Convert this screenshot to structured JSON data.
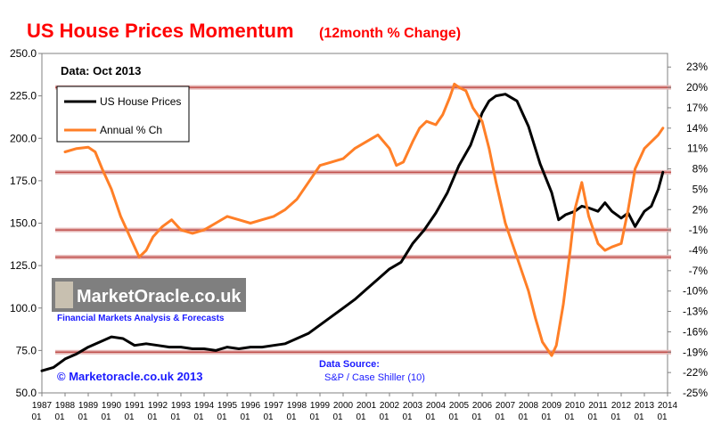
{
  "chart_data": {
    "type": "line",
    "title": "US House Prices Momentum",
    "subtitle": "(12month % Change)",
    "data_note": "Data:  Oct 2013",
    "source_label": "Data Source:",
    "source_value": "S&P / Case Shiller (10)",
    "copyright": "© Marketoracle.co.uk 2013",
    "logo": {
      "name": "MarketOracle.co.uk",
      "tagline": "Financial Markets Analysis & Forecasts"
    },
    "legend_position": "top-left",
    "grid": false,
    "colors": {
      "title": "#ff0000",
      "house_prices": "#000000",
      "annual_change": "#ff7f27",
      "reference_lines": "#c0504d"
    },
    "x_tick_labels": [
      {
        "year": "1987",
        "month": "01"
      },
      {
        "year": "1988",
        "month": "01"
      },
      {
        "year": "1989",
        "month": "01"
      },
      {
        "year": "1990",
        "month": "01"
      },
      {
        "year": "1991",
        "month": "01"
      },
      {
        "year": "1992",
        "month": "01"
      },
      {
        "year": "1993",
        "month": "01"
      },
      {
        "year": "1994",
        "month": "01"
      },
      {
        "year": "1995",
        "month": "01"
      },
      {
        "year": "1996",
        "month": "01"
      },
      {
        "year": "1997",
        "month": "01"
      },
      {
        "year": "1998",
        "month": "01"
      },
      {
        "year": "1999",
        "month": "01"
      },
      {
        "year": "2000",
        "month": "01"
      },
      {
        "year": "2001",
        "month": "01"
      },
      {
        "year": "2002",
        "month": "01"
      },
      {
        "year": "2003",
        "month": "01"
      },
      {
        "year": "2004",
        "month": "01"
      },
      {
        "year": "2005",
        "month": "01"
      },
      {
        "year": "2006",
        "month": "01"
      },
      {
        "year": "2007",
        "month": "01"
      },
      {
        "year": "2008",
        "month": "01"
      },
      {
        "year": "2009",
        "month": "01"
      },
      {
        "year": "2010",
        "month": "01"
      },
      {
        "year": "2011",
        "month": "01"
      },
      {
        "year": "2012",
        "month": "01"
      },
      {
        "year": "2013",
        "month": "01"
      },
      {
        "year": "2014",
        "month": "01"
      }
    ],
    "x_range": [
      1987.0,
      2014.0
    ],
    "y_left": {
      "ticks": [
        "50.0",
        "75.0",
        "100.0",
        "125.0",
        "150.0",
        "175.0",
        "200.0",
        "225.0",
        "250.0"
      ],
      "range": [
        50,
        250
      ]
    },
    "y_right": {
      "ticks": [
        "-25%",
        "-22%",
        "-19%",
        "-16%",
        "-13%",
        "-10%",
        "-7%",
        "-4%",
        "-1%",
        "2%",
        "5%",
        "8%",
        "11%",
        "14%",
        "17%",
        "20%",
        "23%"
      ],
      "range": [
        -25,
        25
      ]
    },
    "reference_lines_pct": [
      20,
      7.5,
      -1,
      -5,
      -19
    ],
    "series": [
      {
        "name": "US House Prices",
        "axis": "left",
        "x": [
          1987.0,
          1987.5,
          1988.0,
          1988.5,
          1989.0,
          1989.5,
          1990.0,
          1990.5,
          1991.0,
          1991.5,
          1992.0,
          1992.5,
          1993.0,
          1993.5,
          1994.0,
          1994.5,
          1995.0,
          1995.5,
          1996.0,
          1996.5,
          1997.0,
          1997.5,
          1998.0,
          1998.5,
          1999.0,
          1999.5,
          2000.0,
          2000.5,
          2001.0,
          2001.5,
          2002.0,
          2002.5,
          2003.0,
          2003.5,
          2004.0,
          2004.5,
          2005.0,
          2005.5,
          2006.0,
          2006.3,
          2006.6,
          2007.0,
          2007.5,
          2008.0,
          2008.5,
          2009.0,
          2009.3,
          2009.6,
          2010.0,
          2010.3,
          2010.6,
          2011.0,
          2011.3,
          2011.6,
          2012.0,
          2012.3,
          2012.6,
          2013.0,
          2013.3,
          2013.6,
          2013.8
        ],
        "values": [
          63,
          65,
          70,
          73,
          77,
          80,
          83,
          82,
          78,
          79,
          78,
          77,
          77,
          76,
          76,
          75,
          77,
          76,
          77,
          77,
          78,
          79,
          82,
          85,
          90,
          95,
          100,
          105,
          111,
          117,
          123,
          127,
          138,
          146,
          156,
          168,
          184,
          196,
          215,
          222,
          225,
          226,
          222,
          207,
          185,
          168,
          152,
          155,
          157,
          160,
          159,
          157,
          162,
          157,
          153,
          156,
          148,
          157,
          160,
          170,
          180
        ]
      },
      {
        "name": "Annual % Ch",
        "axis": "right",
        "x": [
          1988.0,
          1988.5,
          1989.0,
          1989.3,
          1989.6,
          1990.0,
          1990.4,
          1990.8,
          1991.2,
          1991.5,
          1991.8,
          1992.2,
          1992.6,
          1993.0,
          1993.5,
          1994.0,
          1994.5,
          1995.0,
          1995.5,
          1996.0,
          1996.5,
          1997.0,
          1997.5,
          1998.0,
          1998.5,
          1999.0,
          1999.5,
          2000.0,
          2000.5,
          2001.0,
          2001.5,
          2002.0,
          2002.3,
          2002.6,
          2003.0,
          2003.3,
          2003.6,
          2004.0,
          2004.3,
          2004.6,
          2004.8,
          2005.0,
          2005.3,
          2005.6,
          2006.0,
          2006.3,
          2006.6,
          2007.0,
          2007.3,
          2007.6,
          2008.0,
          2008.3,
          2008.6,
          2009.0,
          2009.2,
          2009.5,
          2009.8,
          2010.0,
          2010.3,
          2010.6,
          2011.0,
          2011.3,
          2011.6,
          2012.0,
          2012.3,
          2012.6,
          2013.0,
          2013.3,
          2013.6,
          2013.8
        ],
        "values": [
          10.5,
          11,
          11.2,
          10.5,
          8,
          5,
          1,
          -2,
          -5,
          -4,
          -2,
          -0.5,
          0.5,
          -1,
          -1.5,
          -1,
          0,
          1,
          0.5,
          0,
          0.5,
          1,
          2,
          3.5,
          6,
          8.5,
          9,
          9.5,
          11,
          12,
          13,
          11,
          8.5,
          9,
          12,
          14,
          15,
          14.5,
          16,
          18.5,
          20.5,
          20,
          19.5,
          17,
          15,
          11,
          6,
          0,
          -3,
          -6,
          -10,
          -14,
          -17.5,
          -19.5,
          -18,
          -12,
          -4,
          2,
          6,
          1,
          -3,
          -4,
          -3.5,
          -3,
          2,
          8,
          11,
          12,
          13,
          14
        ]
      }
    ]
  }
}
